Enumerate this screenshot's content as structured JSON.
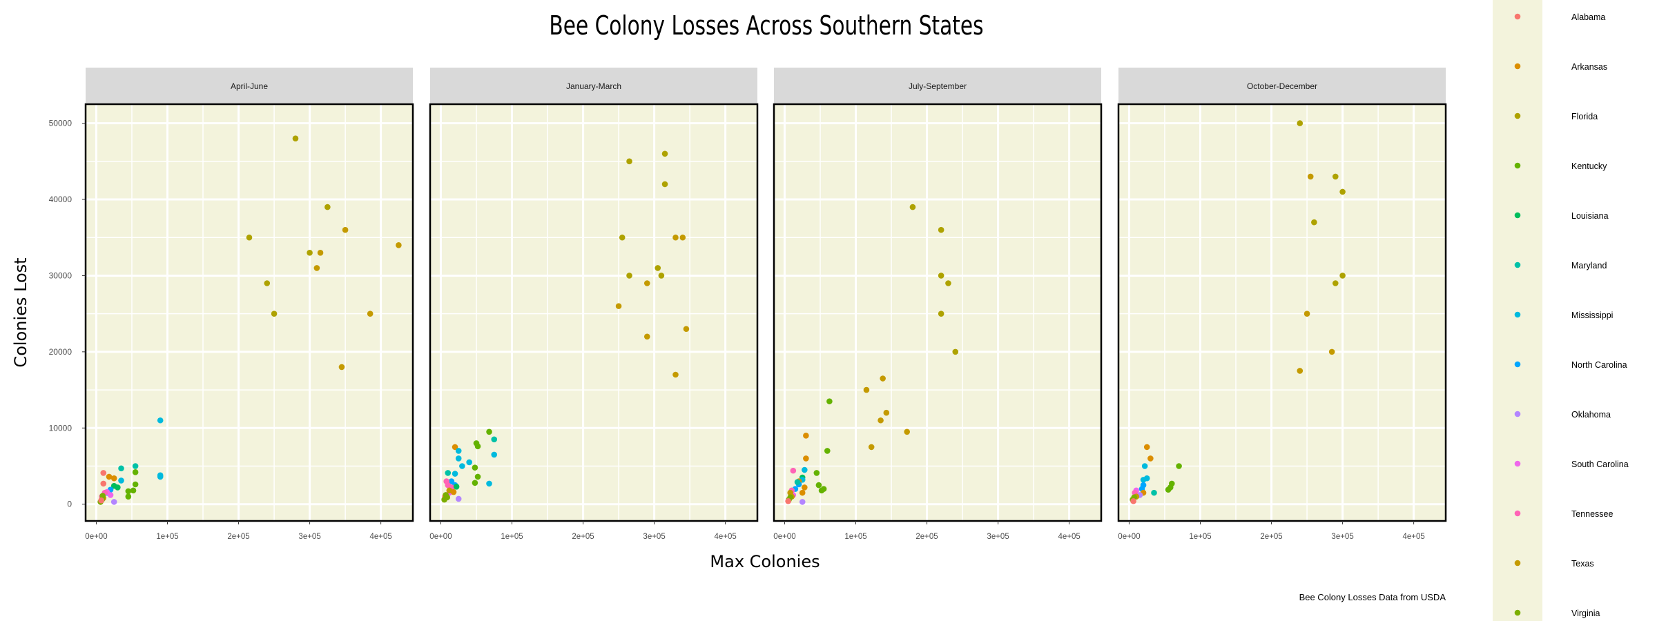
{
  "chart_data": {
    "type": "scatter",
    "title": "Bee Colony Losses Across Southern States",
    "xlabel": "Max Colonies",
    "ylabel": "Colonies Lost",
    "caption": "Bee Colony Losses Data from USDA",
    "xlim": [
      -15000,
      445000
    ],
    "ylim": [
      -2200,
      52500
    ],
    "x_ticks": [
      0,
      100000,
      200000,
      300000,
      400000
    ],
    "x_tick_labels": [
      "0e+00",
      "1e+05",
      "2e+05",
      "3e+05",
      "4e+05"
    ],
    "y_ticks": [
      0,
      10000,
      20000,
      30000,
      40000,
      50000
    ],
    "y_tick_labels": [
      "0",
      "10000",
      "20000",
      "30000",
      "40000",
      "50000"
    ],
    "panel_background": "#f3f3dc",
    "strip_background": "#d9d9d9",
    "legend_background": "#f3f3dc",
    "grid": true,
    "legend_position": "right",
    "states": [
      "Alabama",
      "Arkansas",
      "Florida",
      "Kentucky",
      "Louisiana",
      "Maryland",
      "Mississippi",
      "North Carolina",
      "Oklahoma",
      "South Carolina",
      "Tennessee",
      "Texas",
      "Virginia"
    ],
    "state_colors": [
      "#F8766D",
      "#DB8E00",
      "#AEA200",
      "#64B200",
      "#00BD5C",
      "#00C1A7",
      "#00BADE",
      "#00A6FF",
      "#B385FF",
      "#EF67EB",
      "#FF63B6",
      "#C49A00",
      "#7CAE00"
    ],
    "panels": [
      {
        "name": "April-June",
        "points": [
          {
            "state": "Florida",
            "x": 280000,
            "y": 48000
          },
          {
            "state": "Florida",
            "x": 325000,
            "y": 39000
          },
          {
            "state": "Florida",
            "x": 215000,
            "y": 35000
          },
          {
            "state": "Florida",
            "x": 300000,
            "y": 33000
          },
          {
            "state": "Florida",
            "x": 240000,
            "y": 29000
          },
          {
            "state": "Florida",
            "x": 250000,
            "y": 25000
          },
          {
            "state": "Texas",
            "x": 350000,
            "y": 36000
          },
          {
            "state": "Texas",
            "x": 425000,
            "y": 34000
          },
          {
            "state": "Texas",
            "x": 315000,
            "y": 33000
          },
          {
            "state": "Texas",
            "x": 310000,
            "y": 31000
          },
          {
            "state": "Texas",
            "x": 385000,
            "y": 25000
          },
          {
            "state": "Texas",
            "x": 345000,
            "y": 18000
          },
          {
            "state": "Mississippi",
            "x": 90000,
            "y": 11000
          },
          {
            "state": "Mississippi",
            "x": 90000,
            "y": 3800
          },
          {
            "state": "Mississippi",
            "x": 90000,
            "y": 3600
          },
          {
            "state": "Maryland",
            "x": 55000,
            "y": 5000
          },
          {
            "state": "Maryland",
            "x": 35000,
            "y": 4700
          },
          {
            "state": "Kentucky",
            "x": 55000,
            "y": 4200
          },
          {
            "state": "Kentucky",
            "x": 55000,
            "y": 2600
          },
          {
            "state": "Kentucky",
            "x": 45000,
            "y": 1700
          },
          {
            "state": "Kentucky",
            "x": 52000,
            "y": 1800
          },
          {
            "state": "Kentucky",
            "x": 45000,
            "y": 1000
          },
          {
            "state": "Louisiana",
            "x": 30000,
            "y": 2200
          },
          {
            "state": "Louisiana",
            "x": 25000,
            "y": 2400
          },
          {
            "state": "Mississippi",
            "x": 35000,
            "y": 3100
          },
          {
            "state": "Alabama",
            "x": 10000,
            "y": 4100
          },
          {
            "state": "Alabama",
            "x": 10000,
            "y": 2700
          },
          {
            "state": "Arkansas",
            "x": 18000,
            "y": 3600
          },
          {
            "state": "Arkansas",
            "x": 25000,
            "y": 3400
          },
          {
            "state": "North Carolina",
            "x": 20000,
            "y": 1900
          },
          {
            "state": "North Carolina",
            "x": 15000,
            "y": 1500
          },
          {
            "state": "Oklahoma",
            "x": 25000,
            "y": 300
          },
          {
            "state": "South Carolina",
            "x": 20000,
            "y": 1200
          },
          {
            "state": "South Carolina",
            "x": 15000,
            "y": 1600
          },
          {
            "state": "Tennessee",
            "x": 12000,
            "y": 1500
          },
          {
            "state": "Tennessee",
            "x": 8000,
            "y": 1000
          },
          {
            "state": "Texas",
            "x": 10000,
            "y": 800
          },
          {
            "state": "Virginia",
            "x": 8000,
            "y": 600
          },
          {
            "state": "Virginia",
            "x": 6000,
            "y": 300
          },
          {
            "state": "Virginia",
            "x": 9000,
            "y": 1100
          },
          {
            "state": "Alabama",
            "x": 7000,
            "y": 500
          }
        ]
      },
      {
        "name": "January-March",
        "points": [
          {
            "state": "Florida",
            "x": 265000,
            "y": 45000
          },
          {
            "state": "Florida",
            "x": 315000,
            "y": 46000
          },
          {
            "state": "Florida",
            "x": 315000,
            "y": 42000
          },
          {
            "state": "Florida",
            "x": 255000,
            "y": 35000
          },
          {
            "state": "Florida",
            "x": 305000,
            "y": 31000
          },
          {
            "state": "Florida",
            "x": 265000,
            "y": 30000
          },
          {
            "state": "Florida",
            "x": 310000,
            "y": 30000
          },
          {
            "state": "Texas",
            "x": 330000,
            "y": 35000
          },
          {
            "state": "Texas",
            "x": 340000,
            "y": 35000
          },
          {
            "state": "Texas",
            "x": 290000,
            "y": 29000
          },
          {
            "state": "Texas",
            "x": 250000,
            "y": 26000
          },
          {
            "state": "Texas",
            "x": 345000,
            "y": 23000
          },
          {
            "state": "Texas",
            "x": 290000,
            "y": 22000
          },
          {
            "state": "Texas",
            "x": 330000,
            "y": 17000
          },
          {
            "state": "Kentucky",
            "x": 68000,
            "y": 9500
          },
          {
            "state": "Maryland",
            "x": 75000,
            "y": 8500
          },
          {
            "state": "Kentucky",
            "x": 50000,
            "y": 8000
          },
          {
            "state": "Kentucky",
            "x": 52000,
            "y": 7600
          },
          {
            "state": "Arkansas",
            "x": 20000,
            "y": 7500
          },
          {
            "state": "Mississippi",
            "x": 25000,
            "y": 7000
          },
          {
            "state": "Mississippi",
            "x": 75000,
            "y": 6500
          },
          {
            "state": "Mississippi",
            "x": 25000,
            "y": 6000
          },
          {
            "state": "Mississippi",
            "x": 40000,
            "y": 5500
          },
          {
            "state": "Mississippi",
            "x": 30000,
            "y": 5000
          },
          {
            "state": "Kentucky",
            "x": 48000,
            "y": 4800
          },
          {
            "state": "Maryland",
            "x": 10000,
            "y": 4100
          },
          {
            "state": "Kentucky",
            "x": 52000,
            "y": 3600
          },
          {
            "state": "Kentucky",
            "x": 48000,
            "y": 2800
          },
          {
            "state": "Mississippi",
            "x": 68000,
            "y": 2700
          },
          {
            "state": "Mississippi",
            "x": 20000,
            "y": 4000
          },
          {
            "state": "North Carolina",
            "x": 15000,
            "y": 3000
          },
          {
            "state": "North Carolina",
            "x": 20000,
            "y": 2500
          },
          {
            "state": "Oklahoma",
            "x": 25000,
            "y": 700
          },
          {
            "state": "South Carolina",
            "x": 15000,
            "y": 2000
          },
          {
            "state": "South Carolina",
            "x": 12000,
            "y": 1500
          },
          {
            "state": "Tennessee",
            "x": 8000,
            "y": 3000
          },
          {
            "state": "Tennessee",
            "x": 10000,
            "y": 2500
          },
          {
            "state": "Tennessee",
            "x": 15000,
            "y": 2200
          },
          {
            "state": "Texas",
            "x": 12000,
            "y": 1800
          },
          {
            "state": "Alabama",
            "x": 6000,
            "y": 1000
          },
          {
            "state": "Virginia",
            "x": 5000,
            "y": 600
          },
          {
            "state": "Virginia",
            "x": 7000,
            "y": 1200
          },
          {
            "state": "Virginia",
            "x": 9000,
            "y": 900
          },
          {
            "state": "Arkansas",
            "x": 18000,
            "y": 1600
          },
          {
            "state": "Louisiana",
            "x": 22000,
            "y": 2300
          }
        ]
      },
      {
        "name": "July-September",
        "points": [
          {
            "state": "Florida",
            "x": 180000,
            "y": 39000
          },
          {
            "state": "Florida",
            "x": 220000,
            "y": 36000
          },
          {
            "state": "Florida",
            "x": 220000,
            "y": 30000
          },
          {
            "state": "Florida",
            "x": 230000,
            "y": 29000
          },
          {
            "state": "Florida",
            "x": 220000,
            "y": 25000
          },
          {
            "state": "Florida",
            "x": 240000,
            "y": 20000
          },
          {
            "state": "Texas",
            "x": 138000,
            "y": 16500
          },
          {
            "state": "Texas",
            "x": 115000,
            "y": 15000
          },
          {
            "state": "Texas",
            "x": 143000,
            "y": 12000
          },
          {
            "state": "Texas",
            "x": 135000,
            "y": 11000
          },
          {
            "state": "Texas",
            "x": 172000,
            "y": 9500
          },
          {
            "state": "Texas",
            "x": 122000,
            "y": 7500
          },
          {
            "state": "Kentucky",
            "x": 63000,
            "y": 13500
          },
          {
            "state": "Arkansas",
            "x": 30000,
            "y": 9000
          },
          {
            "state": "Kentucky",
            "x": 60000,
            "y": 7000
          },
          {
            "state": "Arkansas",
            "x": 30000,
            "y": 6000
          },
          {
            "state": "Mississippi",
            "x": 28000,
            "y": 4500
          },
          {
            "state": "Tennessee",
            "x": 12000,
            "y": 4400
          },
          {
            "state": "Kentucky",
            "x": 45000,
            "y": 4100
          },
          {
            "state": "Louisiana",
            "x": 25000,
            "y": 3500
          },
          {
            "state": "Mississippi",
            "x": 25000,
            "y": 3200
          },
          {
            "state": "Arkansas",
            "x": 20000,
            "y": 3000
          },
          {
            "state": "Kentucky",
            "x": 48000,
            "y": 2500
          },
          {
            "state": "Kentucky",
            "x": 55000,
            "y": 2000
          },
          {
            "state": "Kentucky",
            "x": 52000,
            "y": 1800
          },
          {
            "state": "Arkansas",
            "x": 28000,
            "y": 2200
          },
          {
            "state": "Arkansas",
            "x": 25000,
            "y": 1500
          },
          {
            "state": "North Carolina",
            "x": 20000,
            "y": 2600
          },
          {
            "state": "North Carolina",
            "x": 15000,
            "y": 2000
          },
          {
            "state": "Oklahoma",
            "x": 25000,
            "y": 300
          },
          {
            "state": "South Carolina",
            "x": 12000,
            "y": 1200
          },
          {
            "state": "Tennessee",
            "x": 10000,
            "y": 1800
          },
          {
            "state": "Texas",
            "x": 8000,
            "y": 1500
          },
          {
            "state": "Texas",
            "x": 10000,
            "y": 1000
          },
          {
            "state": "Virginia",
            "x": 6000,
            "y": 600
          },
          {
            "state": "Virginia",
            "x": 8000,
            "y": 900
          },
          {
            "state": "Alabama",
            "x": 5000,
            "y": 400
          },
          {
            "state": "Maryland",
            "x": 18000,
            "y": 2900
          }
        ]
      },
      {
        "name": "October-December",
        "points": [
          {
            "state": "Florida",
            "x": 240000,
            "y": 50000
          },
          {
            "state": "Florida",
            "x": 290000,
            "y": 43000
          },
          {
            "state": "Florida",
            "x": 300000,
            "y": 41000
          },
          {
            "state": "Florida",
            "x": 260000,
            "y": 37000
          },
          {
            "state": "Florida",
            "x": 300000,
            "y": 30000
          },
          {
            "state": "Florida",
            "x": 290000,
            "y": 29000
          },
          {
            "state": "Texas",
            "x": 255000,
            "y": 43000
          },
          {
            "state": "Texas",
            "x": 250000,
            "y": 25000
          },
          {
            "state": "Texas",
            "x": 285000,
            "y": 20000
          },
          {
            "state": "Texas",
            "x": 240000,
            "y": 17500
          },
          {
            "state": "Arkansas",
            "x": 25000,
            "y": 7500
          },
          {
            "state": "Arkansas",
            "x": 30000,
            "y": 6000
          },
          {
            "state": "Kentucky",
            "x": 70000,
            "y": 5000
          },
          {
            "state": "Mississippi",
            "x": 22000,
            "y": 5000
          },
          {
            "state": "Mississippi",
            "x": 25000,
            "y": 3400
          },
          {
            "state": "Mississippi",
            "x": 20000,
            "y": 3200
          },
          {
            "state": "Kentucky",
            "x": 60000,
            "y": 2700
          },
          {
            "state": "Kentucky",
            "x": 58000,
            "y": 2200
          },
          {
            "state": "Kentucky",
            "x": 55000,
            "y": 1900
          },
          {
            "state": "Maryland",
            "x": 35000,
            "y": 1500
          },
          {
            "state": "North Carolina",
            "x": 20000,
            "y": 2500
          },
          {
            "state": "North Carolina",
            "x": 18000,
            "y": 2000
          },
          {
            "state": "Arkansas",
            "x": 20000,
            "y": 1500
          },
          {
            "state": "Oklahoma",
            "x": 15000,
            "y": 1200
          },
          {
            "state": "South Carolina",
            "x": 10000,
            "y": 1800
          },
          {
            "state": "Tennessee",
            "x": 8000,
            "y": 1500
          },
          {
            "state": "Texas",
            "x": 10000,
            "y": 1000
          },
          {
            "state": "Virginia",
            "x": 5000,
            "y": 600
          },
          {
            "state": "Virginia",
            "x": 7000,
            "y": 900
          },
          {
            "state": "Alabama",
            "x": 6000,
            "y": 400
          }
        ]
      }
    ]
  }
}
